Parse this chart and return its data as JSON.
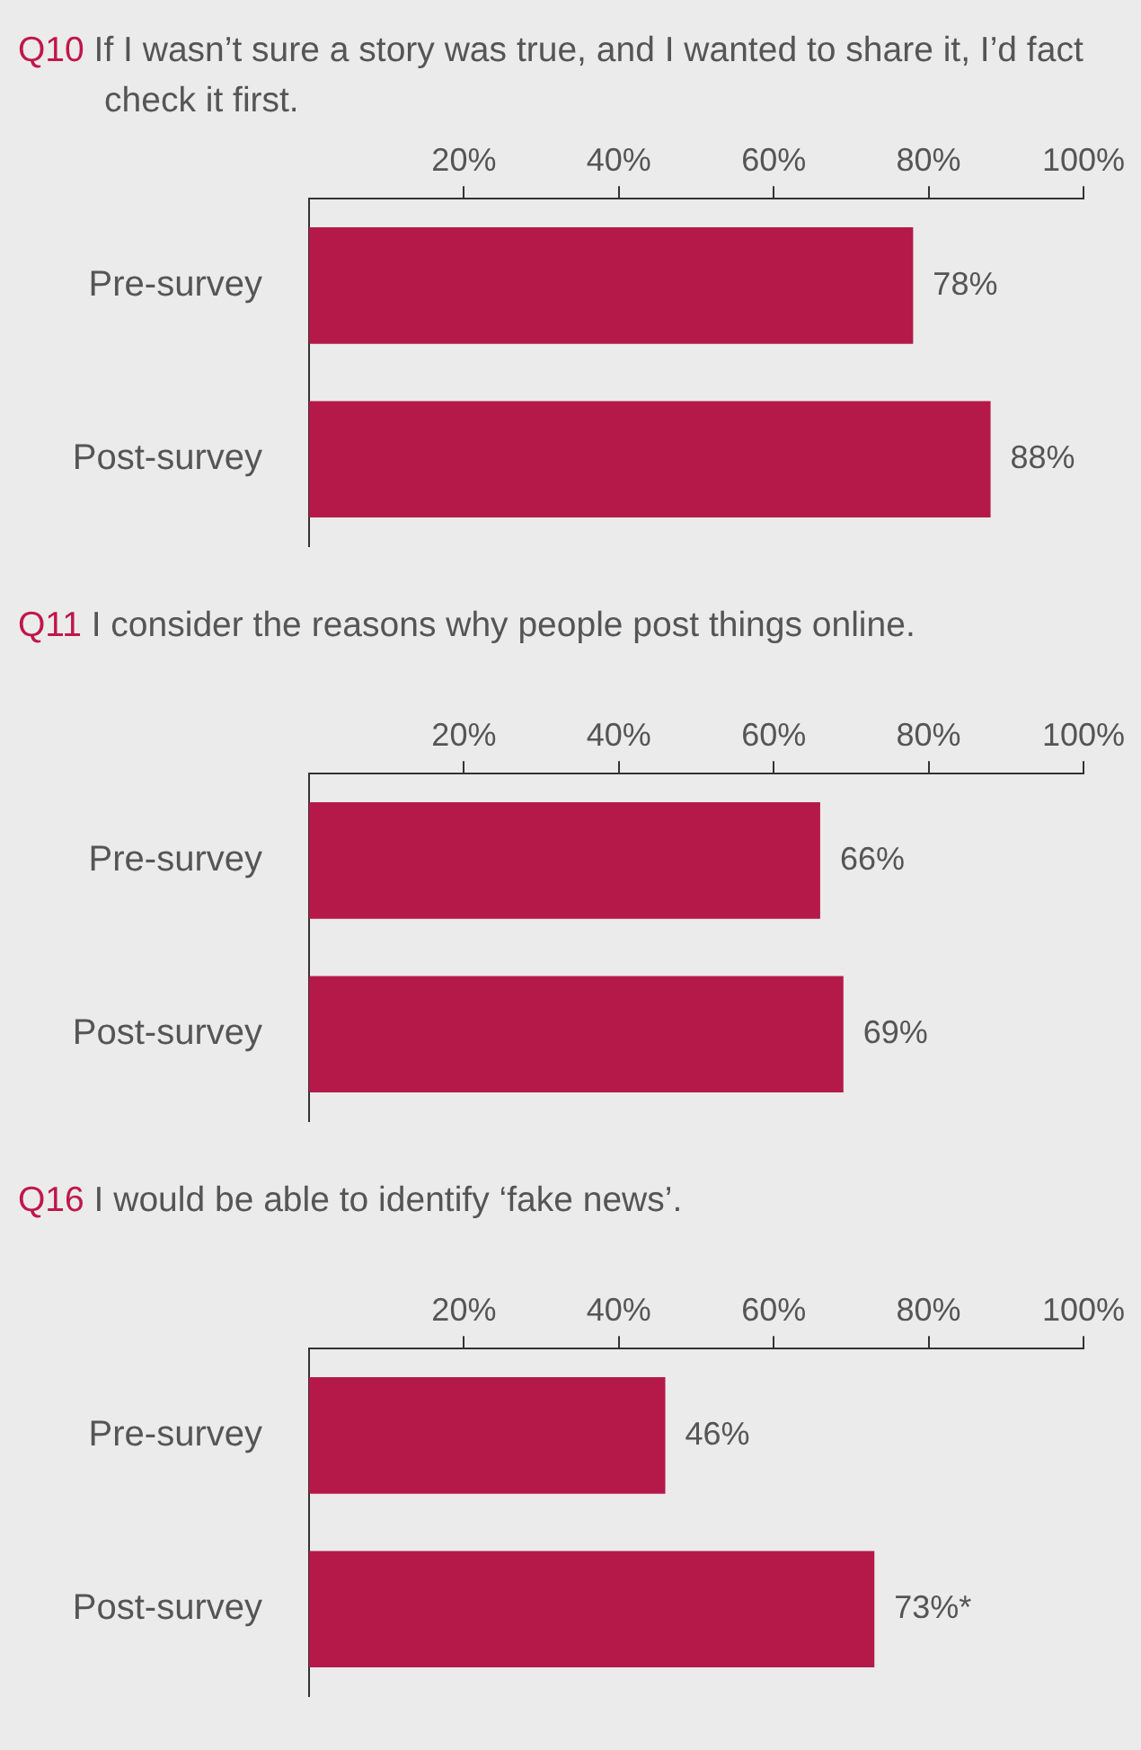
{
  "chart_data": [
    {
      "type": "bar",
      "orientation": "horizontal",
      "title": "Q10 If I wasn’t sure a story was true, and I wanted to share it, I’d fact check it first.",
      "categories": [
        "Pre-survey",
        "Post-survey"
      ],
      "values": [
        78,
        88
      ],
      "value_labels": [
        "78%",
        "88%"
      ],
      "color": "#b5194a",
      "xlim": [
        0,
        100
      ],
      "xticks": [
        {
          "value": 20,
          "label": "20%"
        },
        {
          "value": 40,
          "label": "40%"
        },
        {
          "value": 60,
          "label": "60%"
        },
        {
          "value": 80,
          "label": "80%"
        },
        {
          "value": 100,
          "label": "100%"
        }
      ],
      "grid": false,
      "legend": false
    },
    {
      "type": "bar",
      "orientation": "horizontal",
      "title": "Q11 I consider the reasons why people post things online.",
      "categories": [
        "Pre-survey",
        "Post-survey"
      ],
      "values": [
        66,
        69
      ],
      "value_labels": [
        "66%",
        "69%"
      ],
      "color": "#b5194a",
      "xlim": [
        0,
        100
      ],
      "xticks": [
        {
          "value": 20,
          "label": "20%"
        },
        {
          "value": 40,
          "label": "40%"
        },
        {
          "value": 60,
          "label": "60%"
        },
        {
          "value": 80,
          "label": "80%"
        },
        {
          "value": 100,
          "label": "100%"
        }
      ],
      "grid": false,
      "legend": false
    },
    {
      "type": "bar",
      "orientation": "horizontal",
      "title": "Q16 I would be able to identify ‘fake news’.",
      "categories": [
        "Pre-survey",
        "Post-survey"
      ],
      "values": [
        46,
        73
      ],
      "value_labels": [
        "46%",
        "73%*"
      ],
      "color": "#b5194a",
      "xlim": [
        0,
        100
      ],
      "xticks": [
        {
          "value": 20,
          "label": "20%"
        },
        {
          "value": 40,
          "label": "40%"
        },
        {
          "value": 60,
          "label": "60%"
        },
        {
          "value": 80,
          "label": "80%"
        },
        {
          "value": 100,
          "label": "100%"
        }
      ],
      "grid": false,
      "legend": false
    }
  ]
}
